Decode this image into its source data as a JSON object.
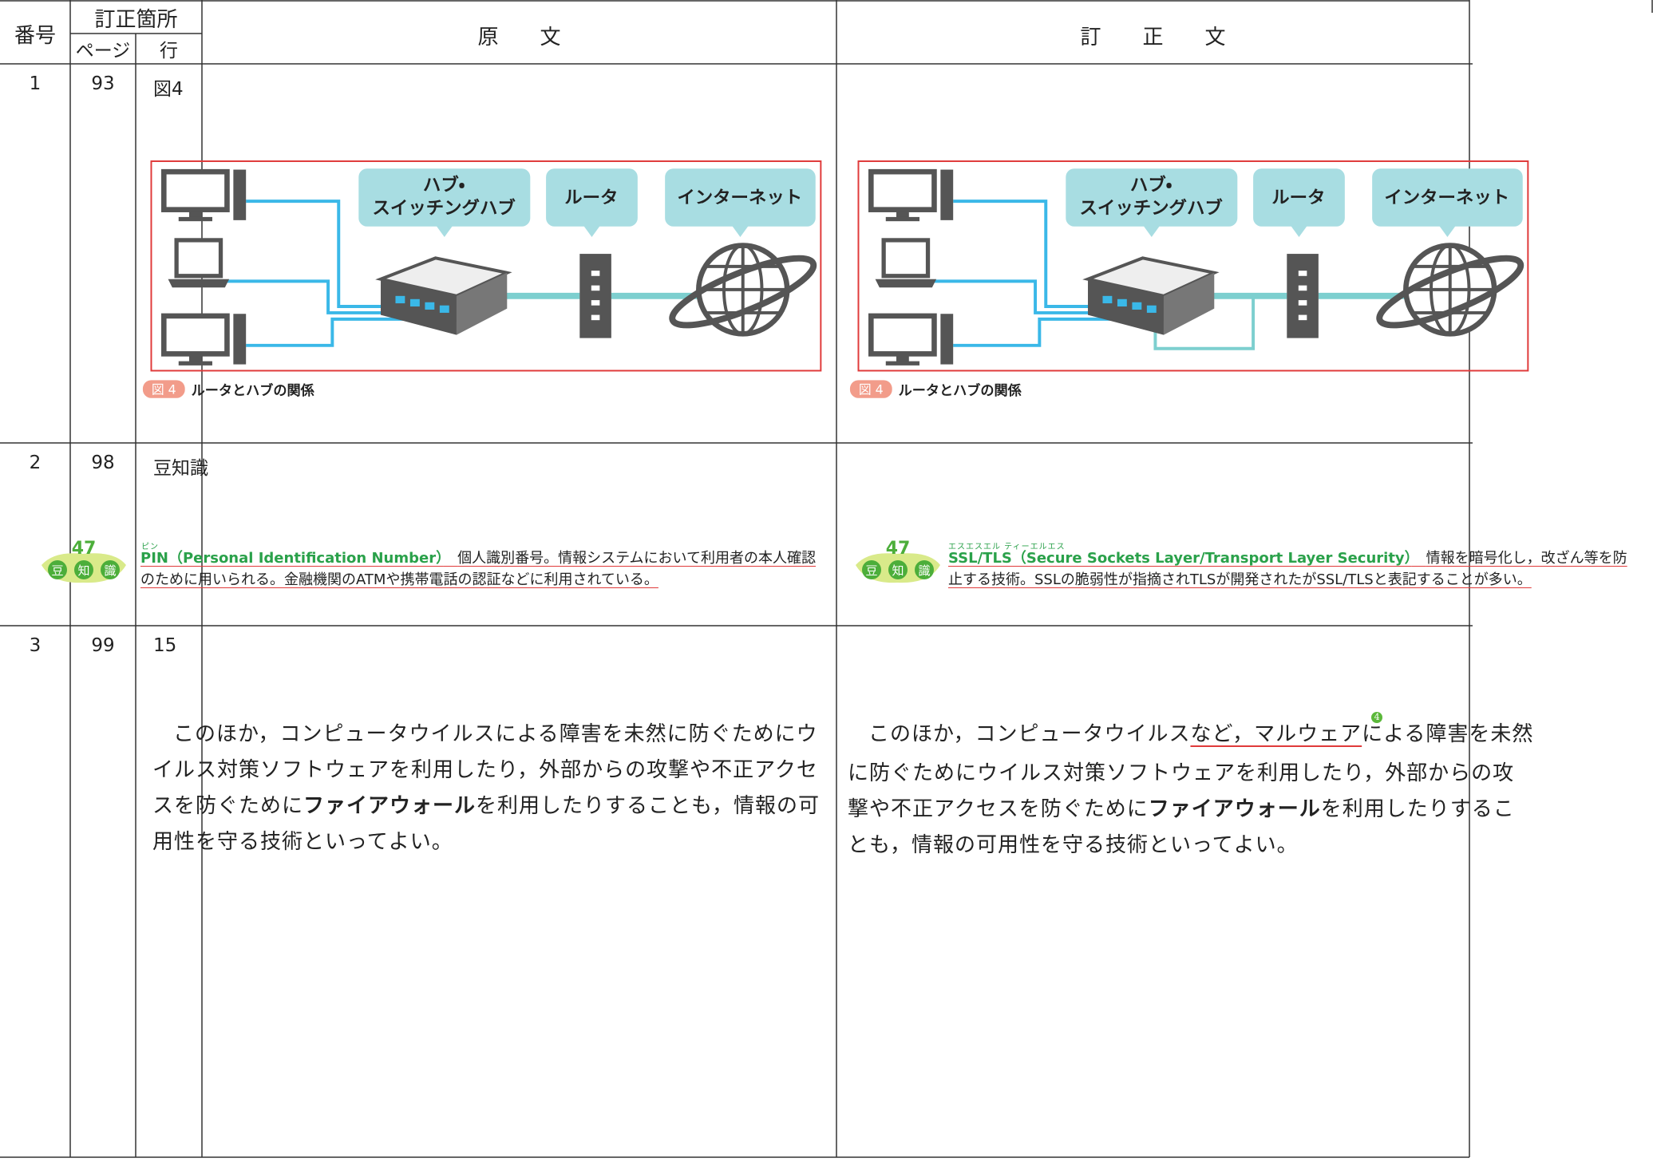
{
  "header": {
    "number": "番号",
    "location": "訂正箇所",
    "page": "ページ",
    "line": "行",
    "original": "原　　文",
    "corrected": "訂　　正　　文"
  },
  "rows": [
    {
      "number": "1",
      "page": "93",
      "line": "図4",
      "original": {
        "figure": {
          "hub_label": [
            "ハブ・",
            "スイッチングハブ"
          ],
          "router_label": "ルータ",
          "internet_label": "インターネット",
          "figure_number": "図 4",
          "caption": "ルータとハブの関係"
        }
      },
      "corrected": {
        "figure": {
          "hub_label": [
            "ハブ・",
            "スイッチングハブ"
          ],
          "router_label": "ルータ",
          "internet_label": "インターネット",
          "figure_number": "図 4",
          "caption": "ルータとハブの関係"
        }
      }
    },
    {
      "number": "2",
      "page": "98",
      "line": "豆知識",
      "original": {
        "badge": {
          "number": "47",
          "chars": [
            "豆",
            "知",
            "識"
          ]
        },
        "ruby": "ピン",
        "term": "PIN（Personal Identification Number）",
        "text": "個人識別番号。情報システムにおいて利用者の本人確認のために用いられる。金融機関のATMや携帯電話の認証などに利用されている。"
      },
      "corrected": {
        "badge": {
          "number": "47",
          "chars": [
            "豆",
            "知",
            "識"
          ]
        },
        "ruby": "エスエスエル ティーエルエス",
        "term": "SSL/TLS（Secure Sockets Layer/Transport Layer Security）",
        "text": "情報を暗号化し，改ざん等を防止する技術。SSLの脆弱性が指摘されTLSが開発されたがSSL/TLSと表記することが多い。"
      }
    },
    {
      "number": "3",
      "page": "99",
      "line": "15",
      "original": {
        "segments": [
          {
            "text": "このほか，コンピュータウイルスによる障害を未然に防ぐためにウイルス対策ソフトウェアを利用したり，外部からの攻撃や不正アクセスを防ぐために"
          },
          {
            "text": "ファイアウォール",
            "bold": true
          },
          {
            "text": "を利用したりすることも，情報の可用性を守る技術といってよい。"
          }
        ]
      },
      "corrected": {
        "segments": [
          {
            "text": "このほか，コンピュータウイルス"
          },
          {
            "text": "など，マルウェア",
            "underline": true
          },
          {
            "text": "4",
            "note": true
          },
          {
            "text": "による障害を未然に防ぐためにウイルス対策ソフトウェアを利用したり，外部からの攻撃や不正アクセスを防ぐために"
          },
          {
            "text": "ファイアウォール",
            "bold": true
          },
          {
            "text": "を利用したりすることも，情報の可用性を守る技術といってよい。"
          }
        ]
      }
    }
  ]
}
